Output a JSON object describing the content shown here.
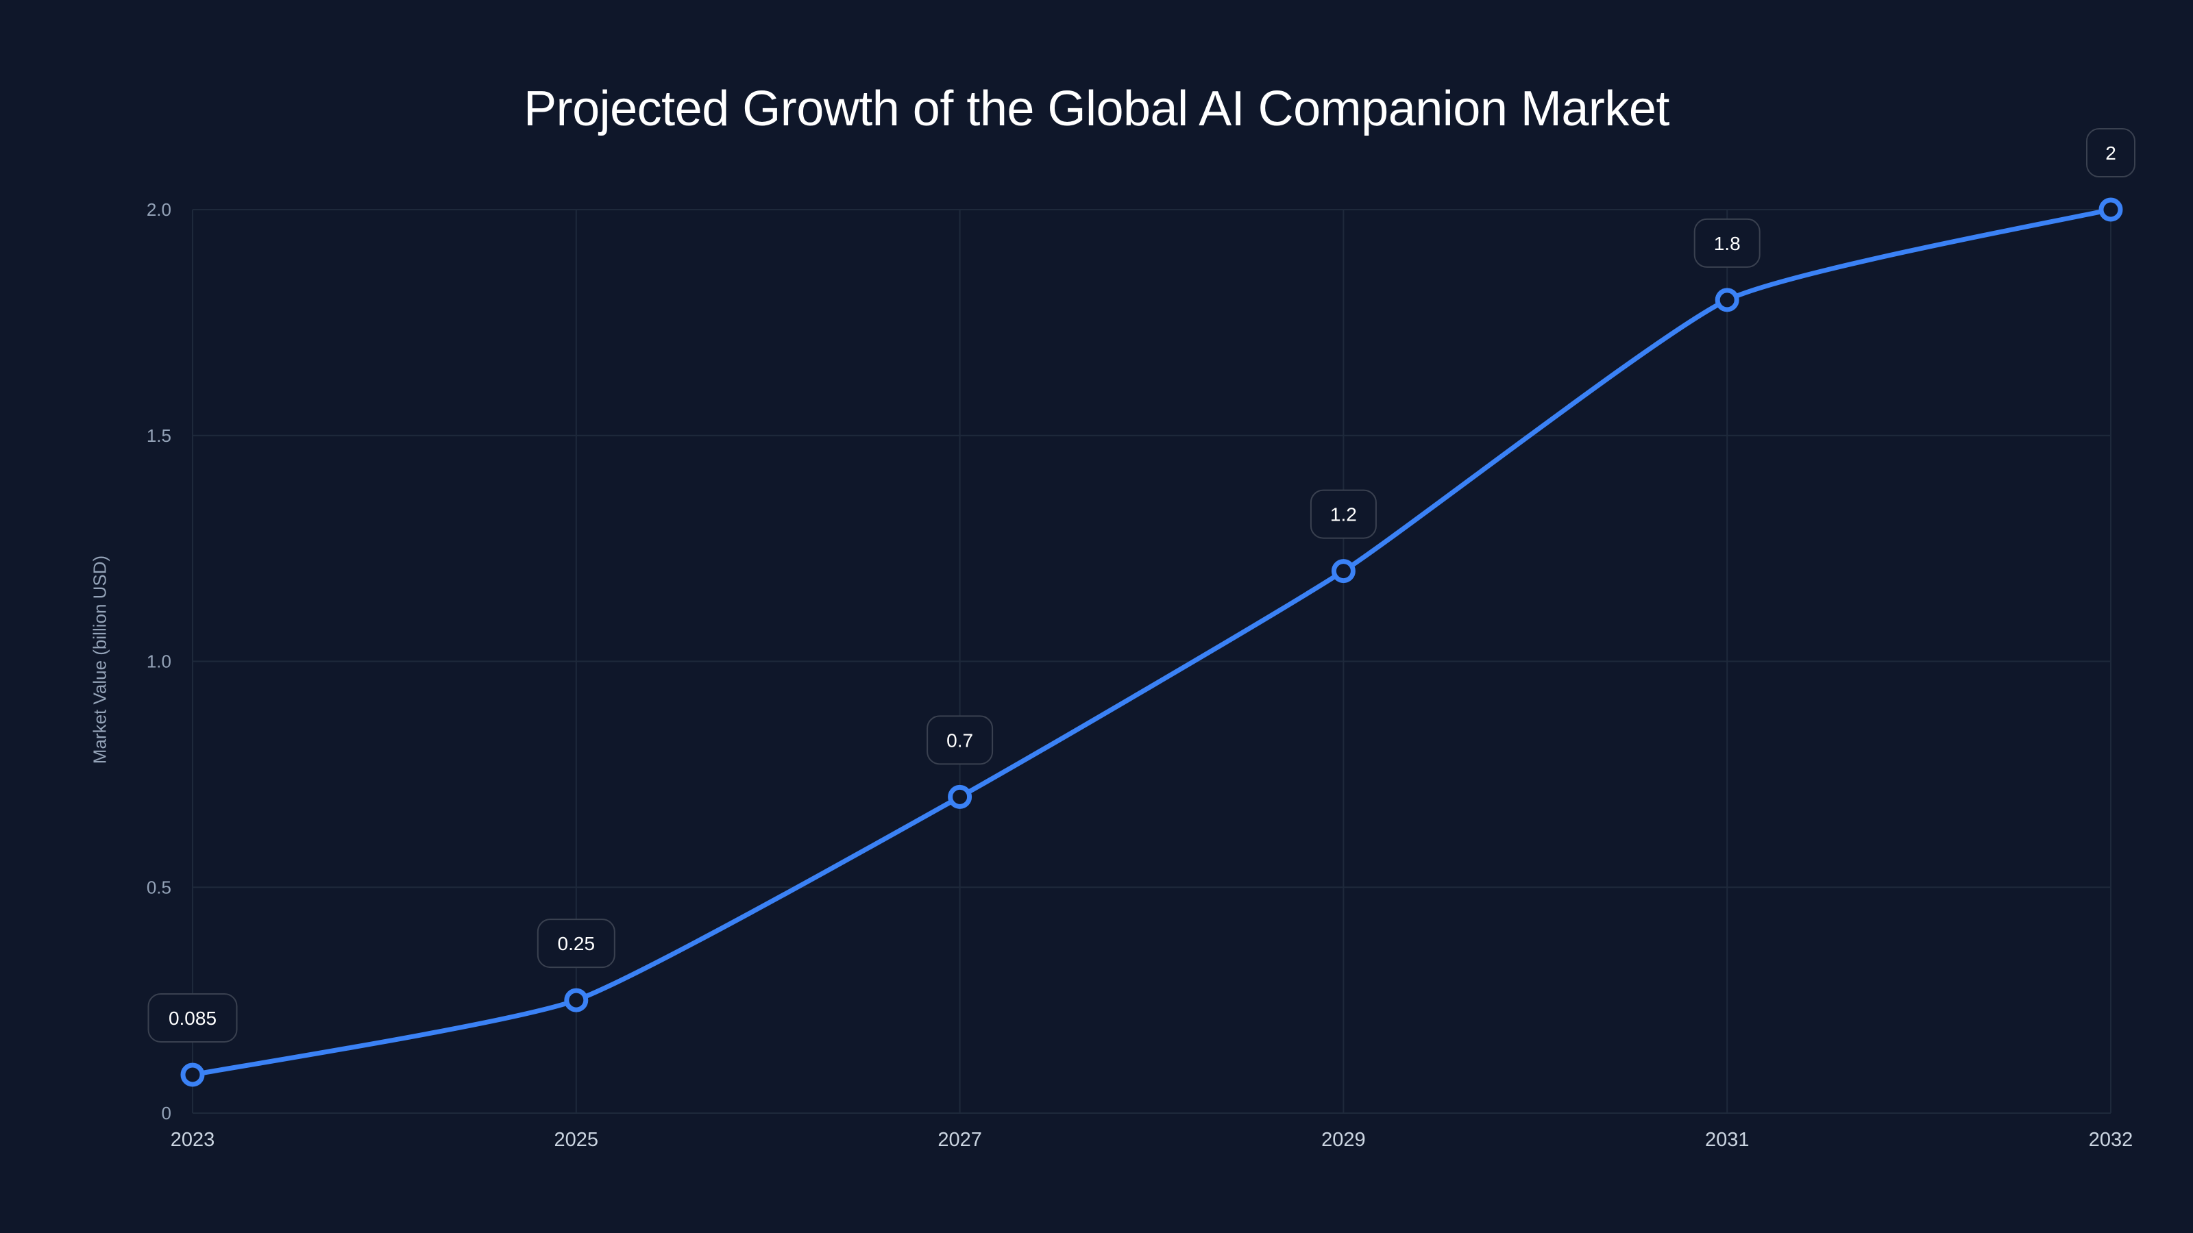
{
  "chart_data": {
    "type": "line",
    "title": "Projected Growth of the Global AI Companion Market",
    "xlabel": "",
    "ylabel": "Market Value (billion USD)",
    "categories": [
      "2023",
      "2025",
      "2027",
      "2029",
      "2031",
      "2032"
    ],
    "series": [
      {
        "name": "Market Value",
        "values": [
          0.085,
          0.25,
          0.7,
          1.2,
          1.8,
          2
        ],
        "color": "#3b82f6"
      }
    ],
    "data_labels": [
      "0.085",
      "0.25",
      "0.7",
      "1.2",
      "1.8",
      "2"
    ],
    "ylim": [
      0,
      2.0
    ],
    "yticks": [
      "0",
      "0.5",
      "1.0",
      "1.5",
      "2.0"
    ],
    "ytick_values": [
      0,
      0.5,
      1.0,
      1.5,
      2.0
    ],
    "grid": true,
    "legend": "none",
    "curve": "smooth"
  },
  "colors": {
    "background": "#0f172a",
    "line": "#3b82f6",
    "grid": "#1e293b",
    "tick_text": "#94a3b8",
    "x_tick_text": "#cbd5e1",
    "label_border": "#3a4150",
    "label_text": "#ffffff"
  }
}
